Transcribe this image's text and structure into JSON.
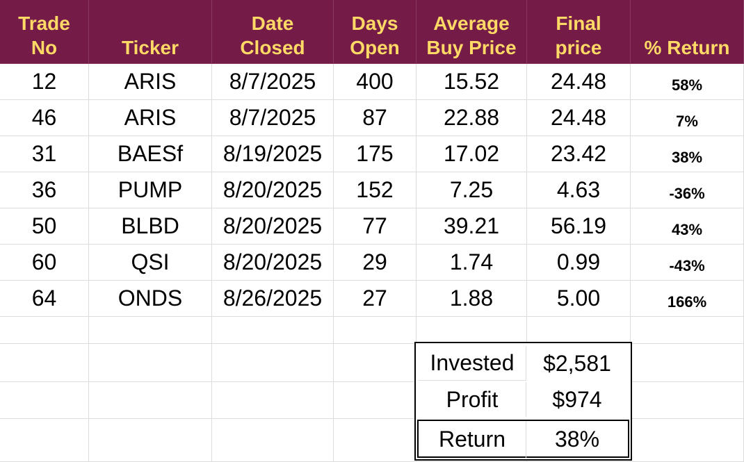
{
  "table": {
    "columns": [
      "Trade\nNo",
      "Ticker",
      "Date\nClosed",
      "Days\nOpen",
      "Average\nBuy Price",
      "Final\nprice",
      "% Return"
    ],
    "rows": [
      [
        "12",
        "ARIS",
        "8/7/2025",
        "400",
        "15.52",
        "24.48",
        "58%"
      ],
      [
        "46",
        "ARIS",
        "8/7/2025",
        "87",
        "22.88",
        "24.48",
        "7%"
      ],
      [
        "31",
        "BAESf",
        "8/19/2025",
        "175",
        "17.02",
        "23.42",
        "38%"
      ],
      [
        "36",
        "PUMP",
        "8/20/2025",
        "152",
        "7.25",
        "4.63",
        "-36%"
      ],
      [
        "50",
        "BLBD",
        "8/20/2025",
        "77",
        "39.21",
        "56.19",
        "43%"
      ],
      [
        "60",
        "QSI",
        "8/20/2025",
        "29",
        "1.74",
        "0.99",
        "-43%"
      ],
      [
        "64",
        "ONDS",
        "8/26/2025",
        "27",
        "1.88",
        "5.00",
        "166%"
      ]
    ]
  },
  "summary": [
    [
      "Invested",
      "$2,581"
    ],
    [
      "Profit",
      "$974"
    ],
    [
      "Return",
      "38%"
    ]
  ]
}
